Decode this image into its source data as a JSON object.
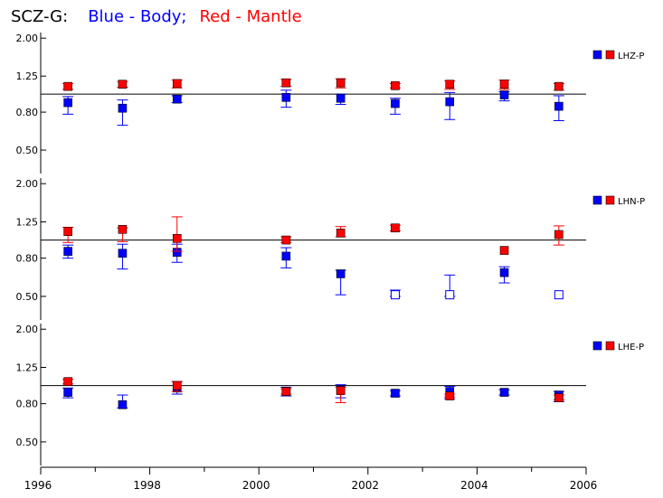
{
  "title_parts": [
    {
      "text": "SCZ-G:",
      "color": "#000000"
    },
    {
      "text": "Blue - Body;",
      "color": "#0000ff"
    },
    {
      "text": "Red - Mantle",
      "color": "#ff0000"
    }
  ],
  "colors": {
    "body": "#0000ff",
    "mantle": "#ff0000",
    "axis": "#000000"
  },
  "chart_data": {
    "type": "scatter",
    "title": "SCZ-G:   Blue - Body;   Red - Mantle",
    "x_ticks": [
      "1996",
      "1998",
      "2000",
      "2002",
      "2004",
      "2006"
    ],
    "xlim": [
      1996,
      2006
    ],
    "ylim": [
      0.4,
      2.05
    ],
    "y_scale": "log",
    "y_tick_values": [
      2.0,
      1.25,
      0.8,
      0.5
    ],
    "y_tick_labels": [
      "2.00",
      "1.25",
      "0.80",
      "0.50"
    ],
    "reference_line": 1.0,
    "panels": [
      {
        "label": "LHZ-P",
        "body": [
          {
            "x": 1996.5,
            "y": 0.9,
            "lo": 0.78,
            "hi": 0.97,
            "open": false
          },
          {
            "x": 1997.5,
            "y": 0.84,
            "lo": 0.68,
            "hi": 0.93,
            "open": false
          },
          {
            "x": 1998.5,
            "y": 0.94,
            "lo": 0.9,
            "hi": 0.98,
            "open": false
          },
          {
            "x": 2000.5,
            "y": 0.96,
            "lo": 0.85,
            "hi": 1.05,
            "open": false
          },
          {
            "x": 2001.5,
            "y": 0.95,
            "lo": 0.88,
            "hi": 1.0,
            "open": false
          },
          {
            "x": 2002.5,
            "y": 0.89,
            "lo": 0.78,
            "hi": 0.95,
            "open": false
          },
          {
            "x": 2003.5,
            "y": 0.91,
            "lo": 0.73,
            "hi": 1.02,
            "open": false
          },
          {
            "x": 2004.5,
            "y": 0.99,
            "lo": 0.92,
            "hi": 1.03,
            "open": false
          },
          {
            "x": 2005.5,
            "y": 0.86,
            "lo": 0.72,
            "hi": 0.98,
            "open": false
          }
        ],
        "mantle": [
          {
            "x": 1996.5,
            "y": 1.1,
            "lo": 1.06,
            "hi": 1.14,
            "open": false
          },
          {
            "x": 1997.5,
            "y": 1.13,
            "lo": 1.09,
            "hi": 1.17,
            "open": false
          },
          {
            "x": 1998.5,
            "y": 1.14,
            "lo": 1.08,
            "hi": 1.19,
            "open": false
          },
          {
            "x": 2000.5,
            "y": 1.15,
            "lo": 1.1,
            "hi": 1.2,
            "open": false
          },
          {
            "x": 2001.5,
            "y": 1.15,
            "lo": 1.08,
            "hi": 1.21,
            "open": false
          },
          {
            "x": 2002.5,
            "y": 1.11,
            "lo": 1.08,
            "hi": 1.14,
            "open": false
          },
          {
            "x": 2003.5,
            "y": 1.13,
            "lo": 1.06,
            "hi": 1.18,
            "open": false
          },
          {
            "x": 2004.5,
            "y": 1.13,
            "lo": 1.06,
            "hi": 1.19,
            "open": false
          },
          {
            "x": 2005.5,
            "y": 1.1,
            "lo": 1.05,
            "hi": 1.14,
            "open": false
          }
        ]
      },
      {
        "label": "LHN-P",
        "body": [
          {
            "x": 1996.5,
            "y": 0.87,
            "lo": 0.8,
            "hi": 0.94,
            "open": false
          },
          {
            "x": 1997.5,
            "y": 0.85,
            "lo": 0.7,
            "hi": 0.95,
            "open": false
          },
          {
            "x": 1998.5,
            "y": 0.86,
            "lo": 0.76,
            "hi": 0.95,
            "open": false
          },
          {
            "x": 2000.5,
            "y": 0.82,
            "lo": 0.71,
            "hi": 0.91,
            "open": false
          },
          {
            "x": 2001.5,
            "y": 0.66,
            "lo": 0.51,
            "hi": 0.69,
            "open": false
          },
          {
            "x": 2002.5,
            "y": 0.51,
            "lo": 0.5,
            "hi": 0.54,
            "open": true
          },
          {
            "x": 2003.5,
            "y": 0.51,
            "lo": 0.5,
            "hi": 0.65,
            "open": true
          },
          {
            "x": 2004.5,
            "y": 0.67,
            "lo": 0.59,
            "hi": 0.72,
            "open": false
          },
          {
            "x": 2005.5,
            "y": 0.51,
            "lo": 0.51,
            "hi": 0.51,
            "open": true
          }
        ],
        "mantle": [
          {
            "x": 1996.5,
            "y": 1.11,
            "lo": 0.97,
            "hi": 1.17,
            "open": false
          },
          {
            "x": 1997.5,
            "y": 1.14,
            "lo": 0.98,
            "hi": 1.16,
            "open": false
          },
          {
            "x": 1998.5,
            "y": 1.02,
            "lo": 0.87,
            "hi": 1.33,
            "open": false
          },
          {
            "x": 2000.5,
            "y": 1.0,
            "lo": 0.97,
            "hi": 1.04,
            "open": false
          },
          {
            "x": 2001.5,
            "y": 1.09,
            "lo": 1.04,
            "hi": 1.18,
            "open": false
          },
          {
            "x": 2002.5,
            "y": 1.16,
            "lo": 1.12,
            "hi": 1.2,
            "open": false
          },
          {
            "x": 2004.5,
            "y": 0.88,
            "lo": 0.88,
            "hi": 0.88,
            "open": false
          },
          {
            "x": 2005.5,
            "y": 1.07,
            "lo": 0.94,
            "hi": 1.19,
            "open": false
          }
        ]
      },
      {
        "label": "LHE-P",
        "body": [
          {
            "x": 1996.5,
            "y": 0.92,
            "lo": 0.86,
            "hi": 0.97,
            "open": false
          },
          {
            "x": 1997.5,
            "y": 0.79,
            "lo": 0.76,
            "hi": 0.89,
            "open": false
          },
          {
            "x": 1998.5,
            "y": 0.97,
            "lo": 0.9,
            "hi": 1.05,
            "open": false
          },
          {
            "x": 2000.5,
            "y": 0.93,
            "lo": 0.88,
            "hi": 0.98,
            "open": false
          },
          {
            "x": 2001.5,
            "y": 0.95,
            "lo": 0.86,
            "hi": 1.01,
            "open": false
          },
          {
            "x": 2002.5,
            "y": 0.91,
            "lo": 0.88,
            "hi": 0.94,
            "open": false
          },
          {
            "x": 2003.5,
            "y": 0.93,
            "lo": 0.85,
            "hi": 0.99,
            "open": false
          },
          {
            "x": 2004.5,
            "y": 0.92,
            "lo": 0.89,
            "hi": 0.95,
            "open": false
          },
          {
            "x": 2005.5,
            "y": 0.89,
            "lo": 0.82,
            "hi": 0.93,
            "open": false
          }
        ],
        "mantle": [
          {
            "x": 1996.5,
            "y": 1.05,
            "lo": 1.02,
            "hi": 1.08,
            "open": false
          },
          {
            "x": 1998.5,
            "y": 1.0,
            "lo": 0.93,
            "hi": 1.05,
            "open": false
          },
          {
            "x": 2000.5,
            "y": 0.93,
            "lo": 0.9,
            "hi": 0.96,
            "open": false
          },
          {
            "x": 2001.5,
            "y": 0.94,
            "lo": 0.81,
            "hi": 0.98,
            "open": false
          },
          {
            "x": 2003.5,
            "y": 0.88,
            "lo": 0.87,
            "hi": 0.9,
            "open": false
          },
          {
            "x": 2005.5,
            "y": 0.86,
            "lo": 0.84,
            "hi": 0.89,
            "open": false
          }
        ]
      }
    ]
  }
}
